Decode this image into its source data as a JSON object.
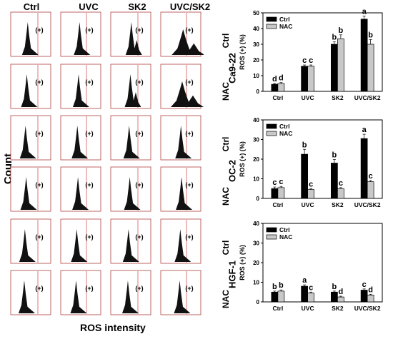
{
  "flow_panel": {
    "columns": [
      "Ctrl",
      "UVC",
      "SK2",
      "UVC/SK2"
    ],
    "row_labels": [
      "Ctrl",
      "NAC",
      "Ctrl",
      "NAC",
      "Ctrl",
      "NAC"
    ],
    "positive_marker": "(+)",
    "y_axis_label": "Count",
    "x_axis_label": "ROS intensity"
  },
  "chart_data": [
    {
      "type": "bar",
      "cell_line": "Ca9-22",
      "title": "",
      "xlabel": "",
      "ylabel": "ROS (+) (%)",
      "ylim": [
        0,
        50
      ],
      "yticks": [
        0,
        10,
        20,
        30,
        40,
        50
      ],
      "categories": [
        "Ctrl",
        "UVC",
        "SK2",
        "UVC/SK2"
      ],
      "legend": "top-left",
      "series": [
        {
          "name": "Ctrl",
          "color": "#000000",
          "values": [
            4.5,
            16,
            30,
            46
          ],
          "errors": [
            0.5,
            0.8,
            1.5,
            2.0
          ],
          "letters": [
            "d",
            "c",
            "b",
            "a"
          ]
        },
        {
          "name": "NAC",
          "color": "#c8c8c8",
          "values": [
            5,
            16,
            33.5,
            30
          ],
          "errors": [
            0.6,
            0.8,
            2.5,
            3.0
          ],
          "letters": [
            "d",
            "c",
            "b",
            "b"
          ]
        }
      ]
    },
    {
      "type": "bar",
      "cell_line": "OC-2",
      "title": "",
      "xlabel": "",
      "ylabel": "ROS (+) (%)",
      "ylim": [
        0,
        40
      ],
      "yticks": [
        0,
        10,
        20,
        30,
        40
      ],
      "categories": [
        "Ctrl",
        "UVC",
        "SK2",
        "UVC/SK2"
      ],
      "legend": "top-left",
      "series": [
        {
          "name": "Ctrl",
          "color": "#000000",
          "values": [
            5,
            22.5,
            18,
            30.5
          ],
          "errors": [
            0.8,
            2.5,
            1.8,
            2.2
          ],
          "letters": [
            "c",
            "b",
            "b",
            "a"
          ]
        },
        {
          "name": "NAC",
          "color": "#c8c8c8",
          "values": [
            5.5,
            4.5,
            5,
            8.5
          ],
          "errors": [
            0.6,
            0.5,
            0.5,
            0.6
          ],
          "letters": [
            "c",
            "c",
            "c",
            "c"
          ]
        }
      ]
    },
    {
      "type": "bar",
      "cell_line": "HGF-1",
      "title": "",
      "xlabel": "",
      "ylabel": "ROS (+) (%)",
      "ylim": [
        0,
        40
      ],
      "yticks": [
        0,
        10,
        20,
        30,
        40
      ],
      "categories": [
        "Ctrl",
        "UVC",
        "SK2",
        "UVC/SK2"
      ],
      "legend": "top-left",
      "series": [
        {
          "name": "Ctrl",
          "color": "#000000",
          "values": [
            5,
            8,
            5,
            6
          ],
          "errors": [
            0.5,
            0.7,
            0.5,
            0.6
          ],
          "letters": [
            "b",
            "a",
            "b",
            "c"
          ]
        },
        {
          "name": "NAC",
          "color": "#c8c8c8",
          "values": [
            5.5,
            4.5,
            2.5,
            3.5
          ],
          "errors": [
            0.6,
            0.5,
            0.4,
            0.4
          ],
          "letters": [
            "b",
            "c",
            "d",
            "d"
          ]
        }
      ]
    }
  ]
}
